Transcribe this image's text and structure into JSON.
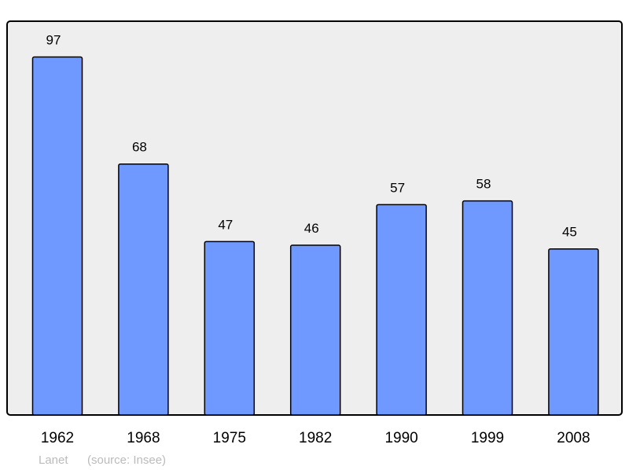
{
  "chart_data": {
    "type": "bar",
    "categories": [
      "1962",
      "1968",
      "1975",
      "1982",
      "1990",
      "1999",
      "2008"
    ],
    "values": [
      97,
      68,
      47,
      46,
      57,
      58,
      45
    ],
    "title": "",
    "xlabel": "",
    "ylabel": "",
    "ylim": [
      0,
      106.7
    ],
    "grid": false,
    "data_labels": true,
    "colors": {
      "bar": "#7099ff",
      "plot_background": "#eeeeee",
      "border": "#000000"
    }
  },
  "footer": {
    "place": "Lanet",
    "source": "(source: Insee)"
  }
}
